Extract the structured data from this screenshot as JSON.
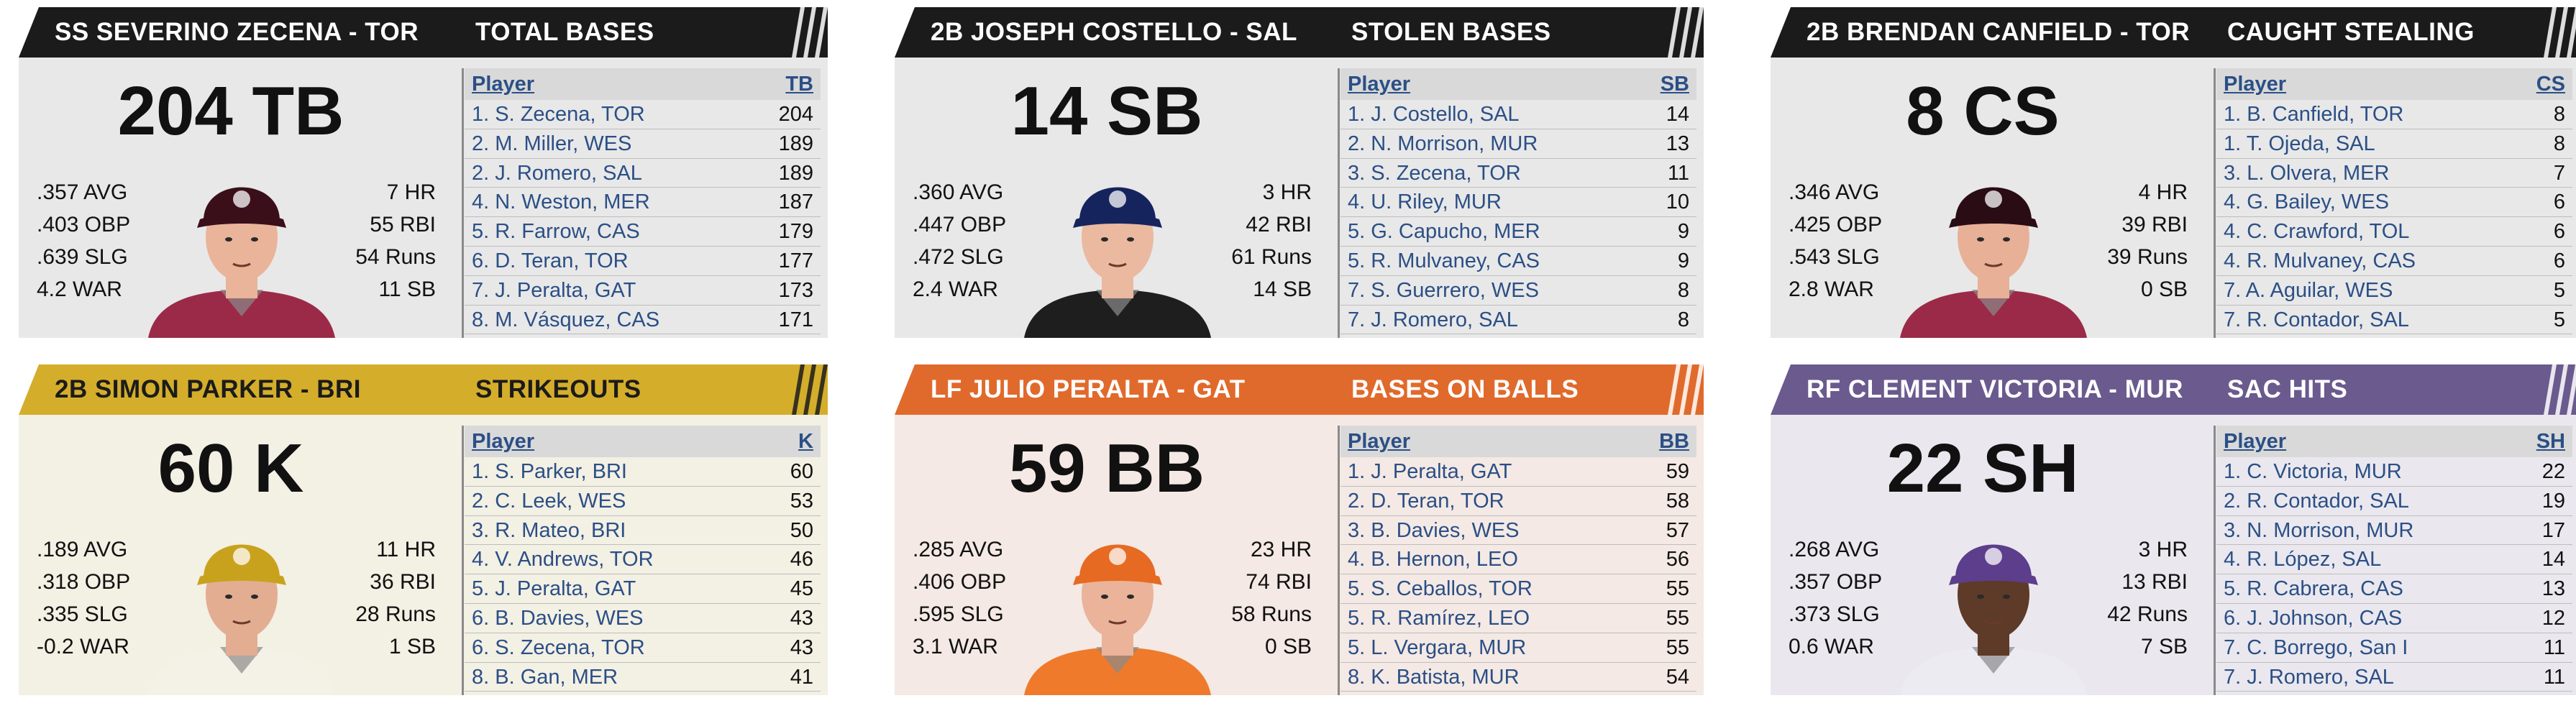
{
  "panels": [
    {
      "header": {
        "player": "SS SEVERINO ZECENA - TOR",
        "category": "TOTAL BASES",
        "color": "#1b1b1b",
        "text_color": "#ffffff"
      },
      "body_color": "#e8e8e8",
      "big_stat": "204 TB",
      "left_stats": [
        ".357 AVG",
        ".403 OBP",
        ".639 SLG",
        "4.2 WAR"
      ],
      "right_stats": [
        "7 HR",
        "55 RBI",
        "54 Runs",
        "11 SB"
      ],
      "portrait": {
        "cap": "#3a0f1a",
        "jersey": "#9b2a48",
        "skin": "#e9b49a"
      },
      "leader": {
        "col_player": "Player",
        "col_stat": "TB",
        "rows": [
          {
            "player": "1. S. Zecena, TOR",
            "value": "204"
          },
          {
            "player": "2. M. Miller, WES",
            "value": "189"
          },
          {
            "player": "2. J. Romero, SAL",
            "value": "189"
          },
          {
            "player": "4. N. Weston, MER",
            "value": "187"
          },
          {
            "player": "5. R. Farrow, CAS",
            "value": "179"
          },
          {
            "player": "6. D. Teran, TOR",
            "value": "177"
          },
          {
            "player": "7. J. Peralta, GAT",
            "value": "173"
          },
          {
            "player": "8. M. Vásquez, CAS",
            "value": "171"
          }
        ]
      }
    },
    {
      "header": {
        "player": "2B JOSEPH COSTELLO - SAL",
        "category": "STOLEN BASES",
        "color": "#1b1b1b",
        "text_color": "#ffffff"
      },
      "body_color": "#e8e8e8",
      "big_stat": "14 SB",
      "left_stats": [
        ".360 AVG",
        ".447 OBP",
        ".472 SLG",
        "2.4 WAR"
      ],
      "right_stats": [
        "3 HR",
        "42 RBI",
        "61 Runs",
        "14 SB"
      ],
      "portrait": {
        "cap": "#16245e",
        "jersey": "#1e1e1e",
        "skin": "#eab9a0"
      },
      "leader": {
        "col_player": "Player",
        "col_stat": "SB",
        "rows": [
          {
            "player": "1. J. Costello, SAL",
            "value": "14"
          },
          {
            "player": "2. N. Morrison, MUR",
            "value": "13"
          },
          {
            "player": "3. S. Zecena, TOR",
            "value": "11"
          },
          {
            "player": "4. U. Riley, MUR",
            "value": "10"
          },
          {
            "player": "5. G. Capucho, MER",
            "value": "9"
          },
          {
            "player": "5. R. Mulvaney, CAS",
            "value": "9"
          },
          {
            "player": "7. S. Guerrero, WES",
            "value": "8"
          },
          {
            "player": "7. J. Romero, SAL",
            "value": "8"
          }
        ]
      }
    },
    {
      "header": {
        "player": "2B BRENDAN CANFIELD - TOR",
        "category": "CAUGHT STEALING",
        "color": "#1b1b1b",
        "text_color": "#ffffff"
      },
      "body_color": "#e8e8e8",
      "big_stat": "8 CS",
      "left_stats": [
        ".346 AVG",
        ".425 OBP",
        ".543 SLG",
        "2.8 WAR"
      ],
      "right_stats": [
        "4 HR",
        "39 RBI",
        "39 Runs",
        "0 SB"
      ],
      "portrait": {
        "cap": "#2a0c14",
        "jersey": "#9b2a48",
        "skin": "#e8b096"
      },
      "leader": {
        "col_player": "Player",
        "col_stat": "CS",
        "rows": [
          {
            "player": "1. B. Canfield, TOR",
            "value": "8"
          },
          {
            "player": "1. T. Ojeda, SAL",
            "value": "8"
          },
          {
            "player": "3. L. Olvera, MER",
            "value": "7"
          },
          {
            "player": "4. G. Bailey, WES",
            "value": "6"
          },
          {
            "player": "4. C. Crawford, TOL",
            "value": "6"
          },
          {
            "player": "4. R. Mulvaney, CAS",
            "value": "6"
          },
          {
            "player": "7. A. Aguilar, WES",
            "value": "5"
          },
          {
            "player": "7. R. Contador, SAL",
            "value": "5"
          }
        ]
      }
    },
    {
      "header": {
        "player": "2B SIMON PARKER - BRI",
        "category": "STRIKEOUTS",
        "color": "#d4ad2b",
        "text_color": "#1b1b1b"
      },
      "body_color": "#f3f0e4",
      "big_stat": "60 K",
      "left_stats": [
        ".189 AVG",
        ".318 OBP",
        ".335 SLG",
        "-0.2 WAR"
      ],
      "right_stats": [
        "11 HR",
        "36 RBI",
        "28 Runs",
        "1 SB"
      ],
      "portrait": {
        "cap": "#c9a21d",
        "jersey": "#f4f1e6",
        "skin": "#e3ad92"
      },
      "leader": {
        "col_player": "Player",
        "col_stat": "K",
        "rows": [
          {
            "player": "1. S. Parker, BRI",
            "value": "60"
          },
          {
            "player": "2. C. Leek, WES",
            "value": "53"
          },
          {
            "player": "3. R. Mateo, BRI",
            "value": "50"
          },
          {
            "player": "4. V. Andrews, TOR",
            "value": "46"
          },
          {
            "player": "5. J. Peralta, GAT",
            "value": "45"
          },
          {
            "player": "6. B. Davies, WES",
            "value": "43"
          },
          {
            "player": "6. S. Zecena, TOR",
            "value": "43"
          },
          {
            "player": "8. B. Gan, MER",
            "value": "41"
          }
        ]
      }
    },
    {
      "header": {
        "player": "LF JULIO PERALTA - GAT",
        "category": "BASES ON BALLS",
        "color": "#e06a2c",
        "text_color": "#ffffff"
      },
      "body_color": "#f4e9e4",
      "big_stat": "59 BB",
      "left_stats": [
        ".285 AVG",
        ".406 OBP",
        ".595 SLG",
        "3.1 WAR"
      ],
      "right_stats": [
        "23 HR",
        "74 RBI",
        "58 Runs",
        "0 SB"
      ],
      "portrait": {
        "cap": "#e66a22",
        "jersey": "#ef7a2c",
        "skin": "#eab39a"
      },
      "leader": {
        "col_player": "Player",
        "col_stat": "BB",
        "rows": [
          {
            "player": "1. J. Peralta, GAT",
            "value": "59"
          },
          {
            "player": "2. D. Teran, TOR",
            "value": "58"
          },
          {
            "player": "3. B. Davies, WES",
            "value": "57"
          },
          {
            "player": "4. B. Hernon, LEO",
            "value": "56"
          },
          {
            "player": "5. S. Ceballos, TOR",
            "value": "55"
          },
          {
            "player": "5. R. Ramírez, LEO",
            "value": "55"
          },
          {
            "player": "5. L. Vergara, MUR",
            "value": "55"
          },
          {
            "player": "8. K. Batista, MUR",
            "value": "54"
          }
        ]
      }
    },
    {
      "header": {
        "player": "RF CLEMENT VICTORIA - MUR",
        "category": "SAC HITS",
        "color": "#6a5a8e",
        "text_color": "#ffffff"
      },
      "body_color": "#eae8ee",
      "big_stat": "22 SH",
      "left_stats": [
        ".268 AVG",
        ".357 OBP",
        ".373 SLG",
        "0.6 WAR"
      ],
      "right_stats": [
        "3 HR",
        "13 RBI",
        "42 Runs",
        "7 SB"
      ],
      "portrait": {
        "cap": "#5c3e8c",
        "jersey": "#ecebf2",
        "skin": "#5e3a28"
      },
      "leader": {
        "col_player": "Player",
        "col_stat": "SH",
        "rows": [
          {
            "player": "1. C. Victoria, MUR",
            "value": "22"
          },
          {
            "player": "2. R. Contador, SAL",
            "value": "19"
          },
          {
            "player": "3. N. Morrison, MUR",
            "value": "17"
          },
          {
            "player": "4. R. López, SAL",
            "value": "14"
          },
          {
            "player": "5. R. Cabrera, CAS",
            "value": "13"
          },
          {
            "player": "6. J. Johnson, CAS",
            "value": "12"
          },
          {
            "player": "7. C. Borrego, San I",
            "value": "11"
          },
          {
            "player": "7. J. Romero, SAL",
            "value": "11"
          }
        ]
      }
    }
  ]
}
